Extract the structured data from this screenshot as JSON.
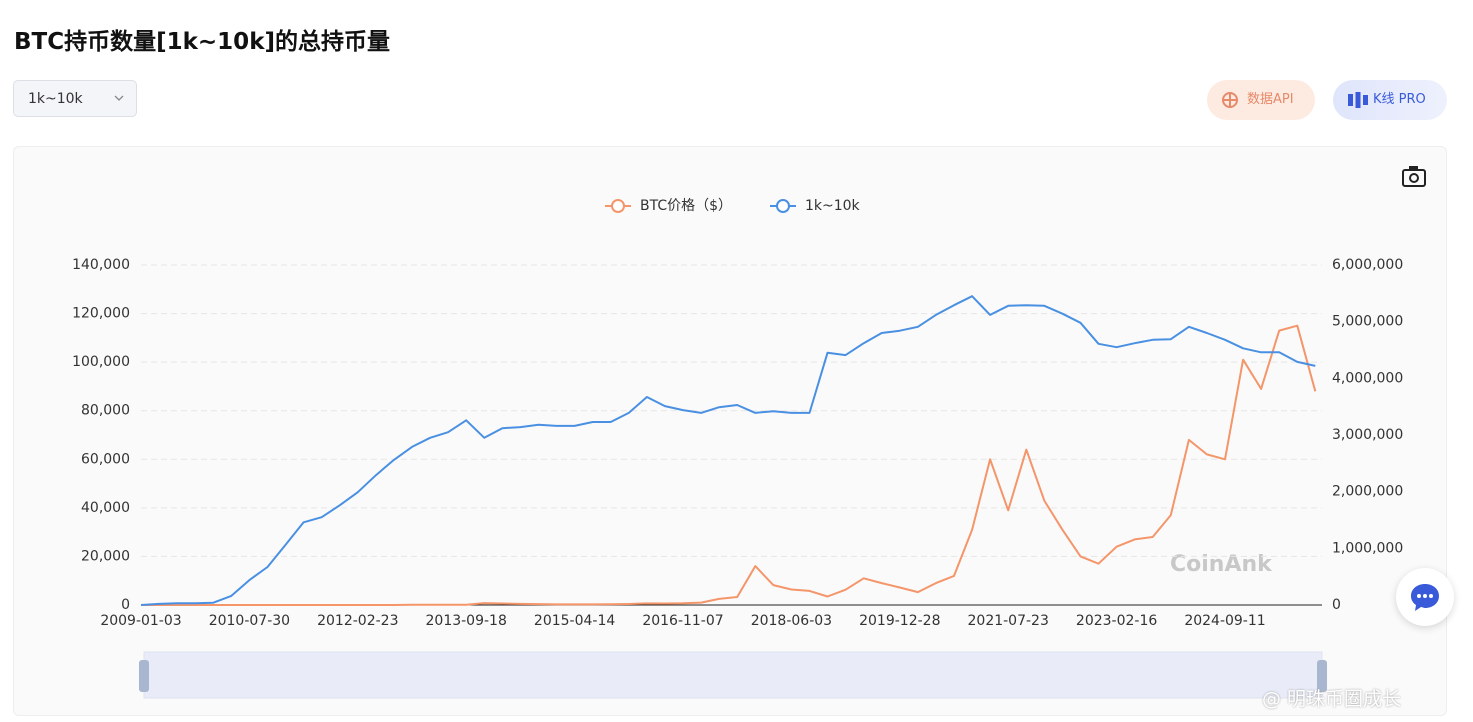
{
  "header": {
    "title": "BTC持币数量[1k~10k]的总持币量",
    "dropdown": "1k~10k",
    "buttons": [
      "数据API",
      "K线 PRO"
    ]
  },
  "watermark": "CoinAnk",
  "footer": "@ 明珠币圈成长",
  "chart_data": {
    "type": "line",
    "grid": true,
    "legend": "top",
    "categories": [
      "2009-01-03",
      null,
      null,
      null,
      null,
      null,
      "2010-07-30",
      null,
      null,
      null,
      null,
      null,
      "2012-02-23",
      null,
      null,
      null,
      null,
      null,
      "2013-09-18",
      null,
      null,
      null,
      null,
      null,
      "2015-04-14",
      null,
      null,
      null,
      null,
      null,
      "2016-11-07",
      null,
      null,
      null,
      null,
      null,
      "2018-06-03",
      null,
      null,
      null,
      null,
      null,
      "2019-12-28",
      null,
      null,
      null,
      null,
      null,
      "2021-07-23",
      null,
      null,
      null,
      null,
      null,
      "2023-02-16",
      null,
      null,
      null,
      null,
      null,
      "2024-09-11",
      null,
      null,
      null,
      null,
      null
    ],
    "series": [
      {
        "name": "BTC价格（$）",
        "color": "#f4956a",
        "values": [
          0,
          0,
          0,
          0,
          0,
          0,
          0,
          0,
          0,
          0,
          0,
          5,
          5,
          10,
          12,
          100,
          120,
          130,
          130,
          800,
          600,
          450,
          350,
          250,
          240,
          230,
          280,
          420,
          650,
          600,
          700,
          1000,
          2500,
          3300,
          16000,
          8200,
          6400,
          5800,
          3500,
          6300,
          11000,
          9000,
          7200,
          5300,
          9000,
          12000,
          31000,
          60000,
          39000,
          64000,
          43000,
          31000,
          20000,
          17000,
          24000,
          27000,
          28000,
          37000,
          68000,
          62000,
          60000,
          101000,
          89000,
          113000,
          115000,
          88000
        ]
      },
      {
        "name": "1k~10k",
        "color": "#4a90e2",
        "axis": "y2",
        "values": [
          0,
          20000,
          30000,
          30000,
          40000,
          160000,
          440000,
          670000,
          1060000,
          1460000,
          1550000,
          1760000,
          1990000,
          2290000,
          2560000,
          2790000,
          2950000,
          3050000,
          3260000,
          2950000,
          3120000,
          3140000,
          3180000,
          3160000,
          3160000,
          3230000,
          3230000,
          3390000,
          3670000,
          3510000,
          3440000,
          3390000,
          3490000,
          3530000,
          3390000,
          3420000,
          3390000,
          3390000,
          4450000,
          4410000,
          4620000,
          4800000,
          4840000,
          4910000,
          5120000,
          5290000,
          5450000,
          5120000,
          5280000,
          5290000,
          5280000,
          5140000,
          4980000,
          4610000,
          4550000,
          4620000,
          4680000,
          4690000,
          4910000,
          4800000,
          4680000,
          4530000,
          4460000,
          4460000,
          4290000,
          4220000
        ]
      }
    ],
    "ylim": [
      0,
      140000
    ],
    "yticks": [
      0,
      {
        "value": 20000,
        "label": "20,000"
      },
      {
        "value": 40000,
        "label": "40,000"
      },
      {
        "value": 60000,
        "label": "60,000"
      },
      {
        "value": 80000,
        "label": "80,000"
      },
      {
        "value": 100000,
        "label": "100,000"
      },
      {
        "value": 120000,
        "label": "120,000"
      },
      {
        "value": 140000,
        "label": "140,000"
      }
    ],
    "y2lim": [
      0,
      6000000
    ],
    "y2ticks": [
      0,
      {
        "value": 1000000,
        "label": "1,000,000"
      },
      {
        "value": 2000000,
        "label": "2,000,000"
      },
      {
        "value": 3000000,
        "label": "3,000,000"
      },
      {
        "value": 4000000,
        "label": "4,000,000"
      },
      {
        "value": 5000000,
        "label": "5,000,000"
      },
      {
        "value": 6000000,
        "label": "6,000,000"
      }
    ]
  }
}
